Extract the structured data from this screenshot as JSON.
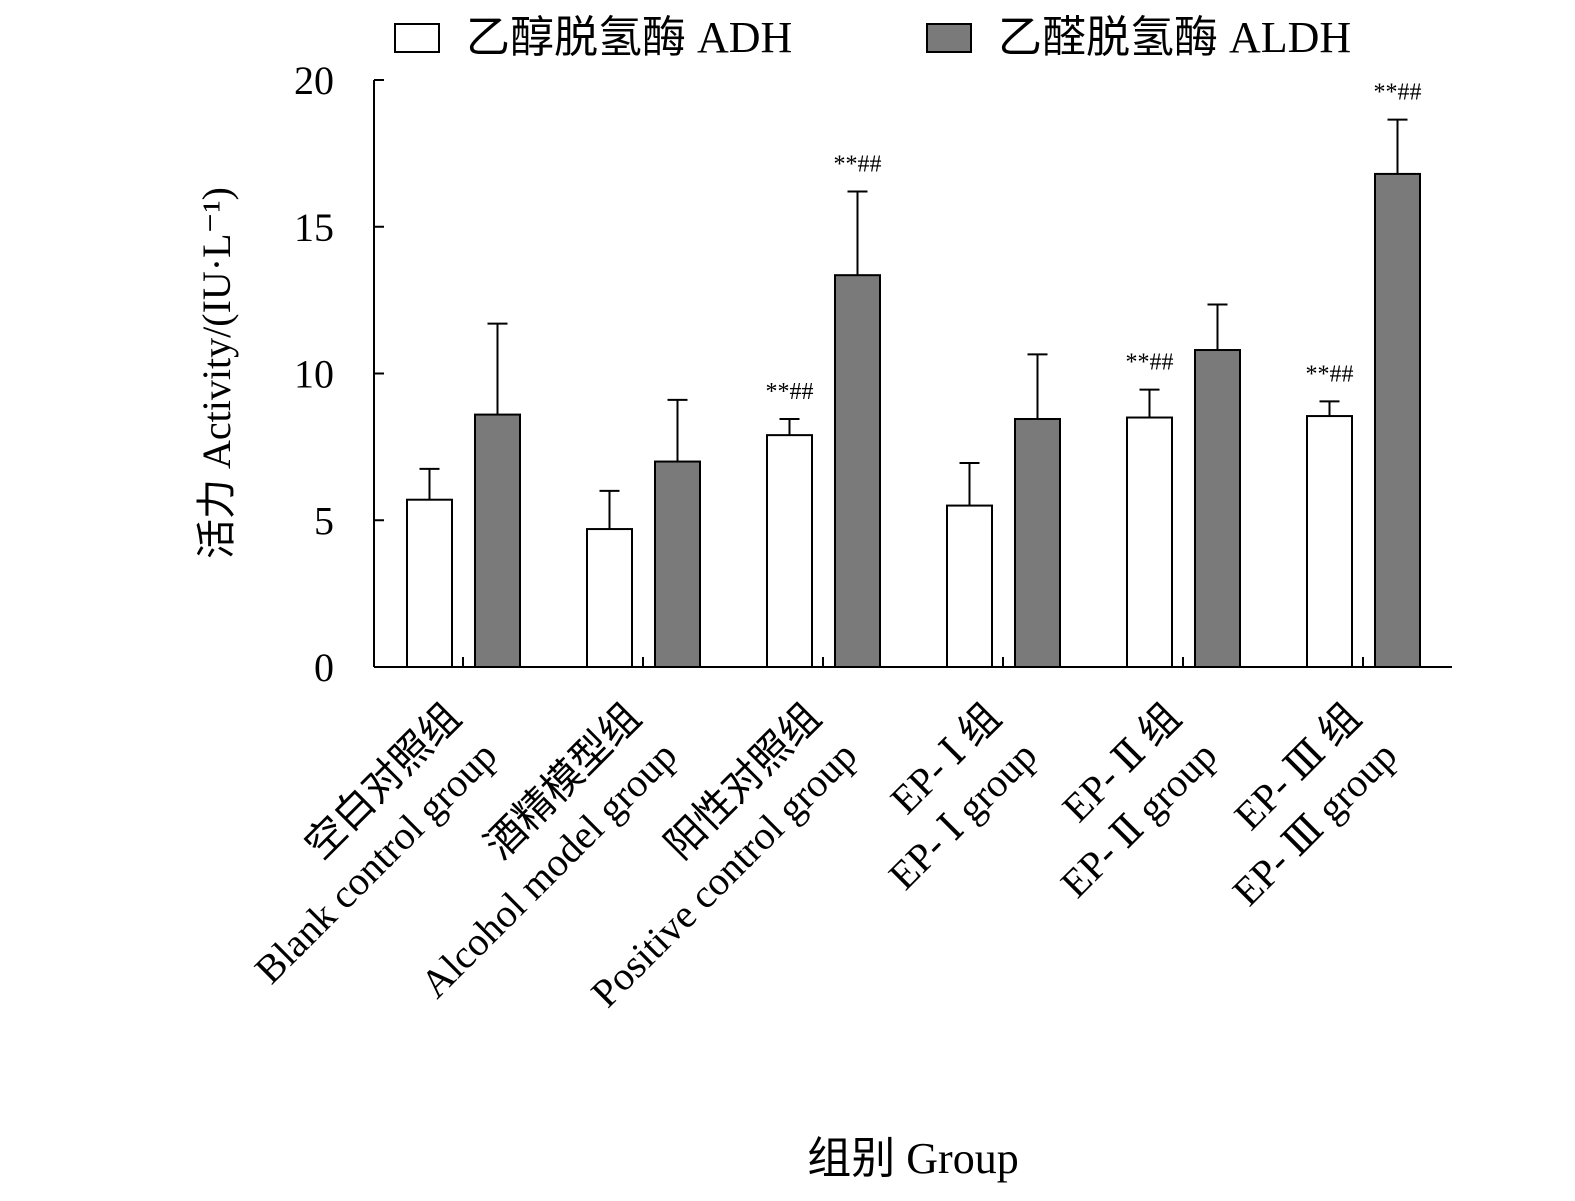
{
  "chart_data": {
    "type": "bar",
    "title": "",
    "xlabel": "组别 Group",
    "ylabel": "活力 Activity/(IU·L⁻¹)",
    "ylim": [
      0,
      20
    ],
    "yticks": [
      "0",
      "5",
      "10",
      "15",
      "20"
    ],
    "ytick_values": [
      0,
      5,
      10,
      15,
      20
    ],
    "grid": false,
    "legend_position": "top",
    "categories": [
      {
        "zh": "空白对照组",
        "en": "Blank control group"
      },
      {
        "zh": "酒精模型组",
        "en": "Alcohol model group"
      },
      {
        "zh": "阳性对照组",
        "en": "Positive control group"
      },
      {
        "zh": "EP- Ⅰ 组",
        "en": "EP- Ⅰ group"
      },
      {
        "zh": "EP- Ⅱ 组",
        "en": "EP- Ⅱ group"
      },
      {
        "zh": "EP- Ⅲ 组",
        "en": "EP- Ⅲ group"
      }
    ],
    "series": [
      {
        "name": "乙醇脱氢酶 ADH",
        "color": "#ffffff",
        "values": [
          5.7,
          4.7,
          7.9,
          5.5,
          8.5,
          8.55
        ],
        "errors": [
          1.05,
          1.3,
          0.55,
          1.45,
          0.95,
          0.5
        ],
        "annotations": [
          "",
          "",
          "**##",
          "",
          "**##",
          "**##"
        ]
      },
      {
        "name": "乙醛脱氢酶 ALDH",
        "color": "#7a7a7a",
        "values": [
          8.6,
          7.0,
          13.35,
          8.45,
          10.8,
          16.8
        ],
        "errors": [
          3.1,
          2.1,
          2.85,
          2.2,
          1.55,
          1.85
        ],
        "annotations": [
          "",
          "",
          "**##",
          "",
          "",
          "**##"
        ]
      }
    ]
  }
}
